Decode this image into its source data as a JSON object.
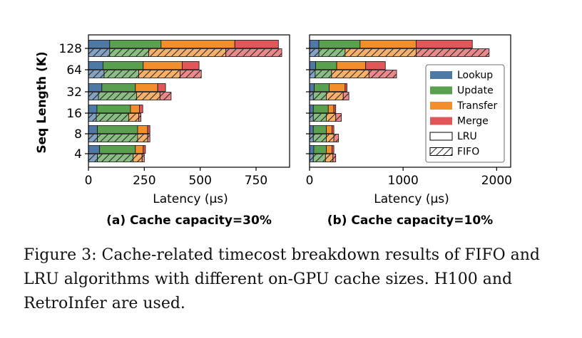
{
  "colors": {
    "Lookup": "#4e79a7",
    "Update": "#59a14f",
    "Transfer": "#f28e2b",
    "Merge": "#e15759"
  },
  "legend": {
    "components": [
      "Lookup",
      "Update",
      "Transfer",
      "Merge"
    ],
    "policies": [
      "LRU",
      "FIFO"
    ],
    "placement": "right (panel b)"
  },
  "caption": "Figure 3: Cache-related timecost breakdown results of FIFO and LRU algorithms with different on-GPU cache sizes. H100 and RetroInfer are used.",
  "chart_data": [
    {
      "type": "bar",
      "orientation": "horizontal",
      "stacked": true,
      "subtitle": "(a) Cache capacity=30%",
      "ylabel": "Seq Length (K)",
      "xlabel": "Latency (μs)",
      "xlim": [
        0,
        900
      ],
      "xticks": [
        0,
        250,
        500,
        750
      ],
      "categories": [
        "4",
        "8",
        "16",
        "32",
        "64",
        "128"
      ],
      "series": [
        {
          "policy": "LRU",
          "components": {
            "Lookup": [
              50,
              40,
              38,
              60,
              65,
              95
            ],
            "Update": [
              160,
              180,
              150,
              150,
              180,
              230
            ],
            "Transfer": [
              35,
              45,
              40,
              100,
              175,
              330
            ],
            "Merge": [
              10,
              10,
              15,
              35,
              75,
              195
            ]
          }
        },
        {
          "policy": "FIFO",
          "components": {
            "Lookup": [
              40,
              40,
              35,
              45,
              70,
              95
            ],
            "Update": [
              160,
              180,
              145,
              170,
              155,
              175
            ],
            "Transfer": [
              40,
              45,
              45,
              105,
              185,
              345
            ],
            "Merge": [
              10,
              10,
              10,
              50,
              95,
              250
            ]
          }
        }
      ]
    },
    {
      "type": "bar",
      "orientation": "horizontal",
      "stacked": true,
      "subtitle": "(b) Cache capacity=10%",
      "ylabel": "",
      "xlabel": "Latency (μs)",
      "xlim": [
        0,
        2150
      ],
      "xticks": [
        0,
        1000,
        2000
      ],
      "categories": [
        "4",
        "8",
        "16",
        "32",
        "64",
        "128"
      ],
      "series": [
        {
          "policy": "LRU",
          "components": {
            "Lookup": [
              45,
              40,
              40,
              50,
              65,
              100
            ],
            "Update": [
              135,
              140,
              160,
              160,
              225,
              440
            ],
            "Transfer": [
              60,
              60,
              60,
              170,
              310,
              600
            ],
            "Merge": [
              20,
              20,
              20,
              20,
              210,
              600
            ]
          }
        },
        {
          "policy": "FIFO",
          "components": {
            "Lookup": [
              40,
              40,
              40,
              40,
              60,
              100
            ],
            "Update": [
              130,
              140,
              140,
              140,
              175,
              280
            ],
            "Transfer": [
              80,
              80,
              100,
              180,
              400,
              760
            ],
            "Merge": [
              30,
              50,
              60,
              60,
              295,
              780
            ]
          }
        }
      ]
    }
  ]
}
